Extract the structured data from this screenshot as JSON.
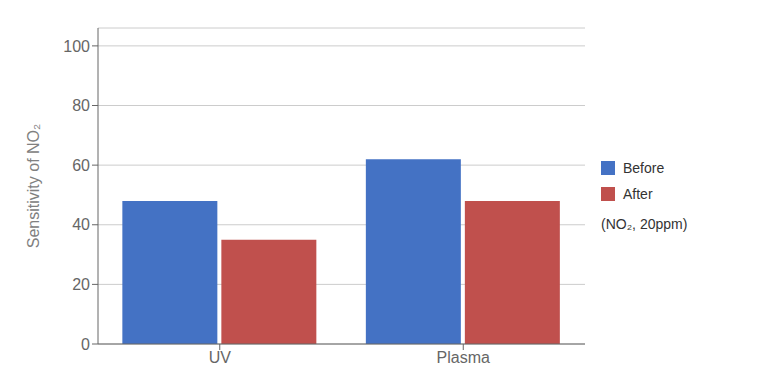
{
  "chart_data": {
    "type": "bar",
    "categories": [
      "UV",
      "Plasma"
    ],
    "series": [
      {
        "name": "Before",
        "color": "#4472C4",
        "values": [
          48,
          62
        ]
      },
      {
        "name": "After",
        "color": "#C0504D",
        "values": [
          35,
          48
        ]
      }
    ],
    "y_label": "Sensitivity  of  NO₂",
    "annotations": [
      "(NO₂, 20ppm)"
    ],
    "ylim": [
      0,
      106
    ],
    "yticks": [
      0,
      20,
      40,
      60,
      80,
      100
    ],
    "grid": true,
    "legend": "right"
  }
}
